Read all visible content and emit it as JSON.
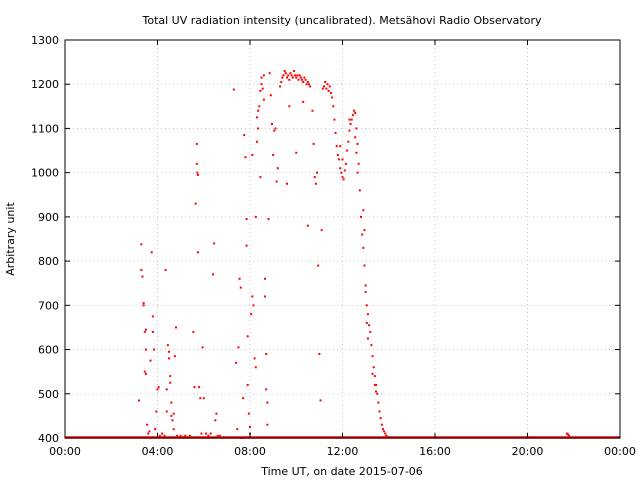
{
  "chart_data": {
    "type": "scatter",
    "title": "Total UV radiation intensity (uncalibrated). Metsähovi Radio Observatory",
    "xlabel": "Time UT, on date 2015-07-06",
    "ylabel": "Arbitrary unit",
    "xlim": [
      0,
      24
    ],
    "ylim": [
      400,
      1300
    ],
    "grid": true,
    "marker_color": "#ff0000",
    "x_ticks": [
      {
        "value": 0,
        "label": "00:00"
      },
      {
        "value": 4,
        "label": "04:00"
      },
      {
        "value": 8,
        "label": "08:00"
      },
      {
        "value": 12,
        "label": "12:00"
      },
      {
        "value": 16,
        "label": "16:00"
      },
      {
        "value": 20,
        "label": "20:00"
      },
      {
        "value": 24,
        "label": "00:00"
      }
    ],
    "y_ticks": [
      {
        "value": 400,
        "label": "400"
      },
      {
        "value": 500,
        "label": "500"
      },
      {
        "value": 600,
        "label": "600"
      },
      {
        "value": 700,
        "label": "700"
      },
      {
        "value": 800,
        "label": "800"
      },
      {
        "value": 900,
        "label": "900"
      },
      {
        "value": 1000,
        "label": "1000"
      },
      {
        "value": 1100,
        "label": "1100"
      },
      {
        "value": 1200,
        "label": "1200"
      },
      {
        "value": 1300,
        "label": "1300"
      }
    ],
    "baseline": {
      "y": 400,
      "x_from": 0,
      "x_to": 24
    },
    "points": [
      [
        3.2,
        485
      ],
      [
        3.3,
        838
      ],
      [
        3.3,
        780
      ],
      [
        3.35,
        765
      ],
      [
        3.4,
        700
      ],
      [
        3.4,
        705
      ],
      [
        3.45,
        640
      ],
      [
        3.5,
        645
      ],
      [
        3.45,
        550
      ],
      [
        3.5,
        545
      ],
      [
        3.5,
        600
      ],
      [
        3.55,
        430
      ],
      [
        3.6,
        410
      ],
      [
        3.65,
        415
      ],
      [
        3.7,
        575
      ],
      [
        3.75,
        820
      ],
      [
        3.8,
        675
      ],
      [
        3.8,
        640
      ],
      [
        3.85,
        600
      ],
      [
        3.9,
        420
      ],
      [
        3.95,
        460
      ],
      [
        4.0,
        510
      ],
      [
        4.05,
        515
      ],
      [
        4.1,
        405
      ],
      [
        4.2,
        410
      ],
      [
        4.3,
        405
      ],
      [
        4.35,
        780
      ],
      [
        4.4,
        460
      ],
      [
        4.4,
        510
      ],
      [
        4.45,
        610
      ],
      [
        4.5,
        595
      ],
      [
        4.5,
        580
      ],
      [
        4.55,
        540
      ],
      [
        4.55,
        525
      ],
      [
        4.6,
        480
      ],
      [
        4.6,
        450
      ],
      [
        4.65,
        440
      ],
      [
        4.7,
        420
      ],
      [
        4.7,
        455
      ],
      [
        4.75,
        585
      ],
      [
        4.8,
        650
      ],
      [
        4.85,
        405
      ],
      [
        5.0,
        405
      ],
      [
        5.2,
        405
      ],
      [
        5.4,
        405
      ],
      [
        5.55,
        640
      ],
      [
        5.6,
        515
      ],
      [
        5.65,
        930
      ],
      [
        5.7,
        1065
      ],
      [
        5.7,
        1020
      ],
      [
        5.72,
        1000
      ],
      [
        5.75,
        995
      ],
      [
        5.75,
        820
      ],
      [
        5.8,
        515
      ],
      [
        5.85,
        490
      ],
      [
        5.9,
        410
      ],
      [
        5.95,
        605
      ],
      [
        6.0,
        490
      ],
      [
        6.1,
        410
      ],
      [
        6.2,
        405
      ],
      [
        6.3,
        410
      ],
      [
        6.4,
        770
      ],
      [
        6.45,
        840
      ],
      [
        6.5,
        440
      ],
      [
        6.55,
        455
      ],
      [
        6.6,
        405
      ],
      [
        6.7,
        405
      ],
      [
        7.3,
        1188
      ],
      [
        7.4,
        570
      ],
      [
        7.45,
        420
      ],
      [
        7.5,
        605
      ],
      [
        7.55,
        760
      ],
      [
        7.6,
        740
      ],
      [
        7.65,
        400
      ],
      [
        7.7,
        490
      ],
      [
        7.75,
        1085
      ],
      [
        7.8,
        1035
      ],
      [
        7.85,
        895
      ],
      [
        7.85,
        835
      ],
      [
        7.9,
        630
      ],
      [
        7.9,
        520
      ],
      [
        7.95,
        455
      ],
      [
        8.0,
        425
      ],
      [
        8.0,
        410
      ],
      [
        8.05,
        680
      ],
      [
        8.1,
        720
      ],
      [
        8.1,
        1040
      ],
      [
        8.15,
        700
      ],
      [
        8.2,
        580
      ],
      [
        8.25,
        560
      ],
      [
        8.25,
        900
      ],
      [
        8.3,
        1125
      ],
      [
        8.3,
        1070
      ],
      [
        8.35,
        1100
      ],
      [
        8.35,
        1140
      ],
      [
        8.4,
        1150
      ],
      [
        8.45,
        1185
      ],
      [
        8.45,
        990
      ],
      [
        8.5,
        1200
      ],
      [
        8.5,
        1215
      ],
      [
        8.55,
        1190
      ],
      [
        8.6,
        1220
      ],
      [
        8.6,
        1165
      ],
      [
        8.65,
        760
      ],
      [
        8.65,
        720
      ],
      [
        8.7,
        590
      ],
      [
        8.7,
        510
      ],
      [
        8.75,
        480
      ],
      [
        8.75,
        430
      ],
      [
        8.8,
        895
      ],
      [
        8.85,
        1225
      ],
      [
        8.9,
        1175
      ],
      [
        8.95,
        1110
      ],
      [
        9.0,
        1040
      ],
      [
        9.05,
        1095
      ],
      [
        9.1,
        1100
      ],
      [
        9.15,
        980
      ],
      [
        9.2,
        1010
      ],
      [
        9.3,
        1195
      ],
      [
        9.35,
        1205
      ],
      [
        9.4,
        1215
      ],
      [
        9.45,
        1220
      ],
      [
        9.5,
        1230
      ],
      [
        9.55,
        1225
      ],
      [
        9.6,
        1215
      ],
      [
        9.65,
        1220
      ],
      [
        9.7,
        1210
      ],
      [
        9.75,
        1225
      ],
      [
        9.8,
        1220
      ],
      [
        9.85,
        1215
      ],
      [
        9.9,
        1230
      ],
      [
        9.95,
        1220
      ],
      [
        10.0,
        1215
      ],
      [
        10.05,
        1220
      ],
      [
        10.1,
        1210
      ],
      [
        10.15,
        1220
      ],
      [
        10.2,
        1215
      ],
      [
        10.25,
        1210
      ],
      [
        10.3,
        1205
      ],
      [
        10.35,
        1215
      ],
      [
        10.4,
        1210
      ],
      [
        10.45,
        1200
      ],
      [
        10.5,
        1205
      ],
      [
        10.55,
        1200
      ],
      [
        10.6,
        1195
      ],
      [
        9.6,
        975
      ],
      [
        9.7,
        1150
      ],
      [
        10.0,
        1045
      ],
      [
        10.3,
        1160
      ],
      [
        10.5,
        880
      ],
      [
        10.7,
        1140
      ],
      [
        10.75,
        1065
      ],
      [
        10.8,
        990
      ],
      [
        10.85,
        975
      ],
      [
        10.9,
        1000
      ],
      [
        10.95,
        790
      ],
      [
        11.0,
        590
      ],
      [
        11.05,
        485
      ],
      [
        11.1,
        870
      ],
      [
        11.15,
        1190
      ],
      [
        11.2,
        1195
      ],
      [
        11.25,
        1205
      ],
      [
        11.3,
        1190
      ],
      [
        11.35,
        1200
      ],
      [
        11.4,
        1185
      ],
      [
        11.45,
        1195
      ],
      [
        11.5,
        1180
      ],
      [
        11.55,
        1170
      ],
      [
        11.6,
        1150
      ],
      [
        11.65,
        1120
      ],
      [
        11.7,
        1090
      ],
      [
        11.75,
        1060
      ],
      [
        11.8,
        1040
      ],
      [
        11.85,
        1030
      ],
      [
        11.9,
        1010
      ],
      [
        11.95,
        1000
      ],
      [
        12.0,
        990
      ],
      [
        12.05,
        985
      ],
      [
        12.1,
        1005
      ],
      [
        12.15,
        1020
      ],
      [
        12.2,
        1050
      ],
      [
        12.25,
        1070
      ],
      [
        12.3,
        1095
      ],
      [
        12.35,
        1110
      ],
      [
        12.4,
        1120
      ],
      [
        12.45,
        1130
      ],
      [
        12.5,
        1140
      ],
      [
        12.55,
        1135
      ],
      [
        12.6,
        1100
      ],
      [
        12.65,
        1065
      ],
      [
        12.7,
        1020
      ],
      [
        12.75,
        960
      ],
      [
        12.8,
        900
      ],
      [
        12.85,
        860
      ],
      [
        12.9,
        830
      ],
      [
        11.9,
        1060
      ],
      [
        12.0,
        1030
      ],
      [
        12.3,
        1120
      ],
      [
        12.55,
        1080
      ],
      [
        12.6,
        1045
      ],
      [
        12.65,
        1000
      ],
      [
        12.95,
        790
      ],
      [
        13.0,
        730
      ],
      [
        13.05,
        700
      ],
      [
        13.1,
        680
      ],
      [
        13.15,
        655
      ],
      [
        13.2,
        640
      ],
      [
        13.25,
        610
      ],
      [
        13.3,
        585
      ],
      [
        13.35,
        560
      ],
      [
        13.4,
        540
      ],
      [
        13.45,
        520
      ],
      [
        13.5,
        500
      ],
      [
        13.55,
        480
      ],
      [
        13.6,
        460
      ],
      [
        13.65,
        445
      ],
      [
        13.7,
        430
      ],
      [
        13.75,
        420
      ],
      [
        13.8,
        415
      ],
      [
        13.85,
        410
      ],
      [
        13.9,
        405
      ],
      [
        14.0,
        402
      ],
      [
        14.1,
        401
      ],
      [
        12.9,
        915
      ],
      [
        12.95,
        870
      ],
      [
        13.0,
        745
      ],
      [
        13.05,
        660
      ],
      [
        13.1,
        625
      ],
      [
        13.3,
        545
      ],
      [
        13.4,
        520
      ],
      [
        13.45,
        505
      ],
      [
        20.0,
        402
      ],
      [
        21.7,
        410
      ],
      [
        21.75,
        408
      ],
      [
        21.8,
        405
      ]
    ]
  }
}
